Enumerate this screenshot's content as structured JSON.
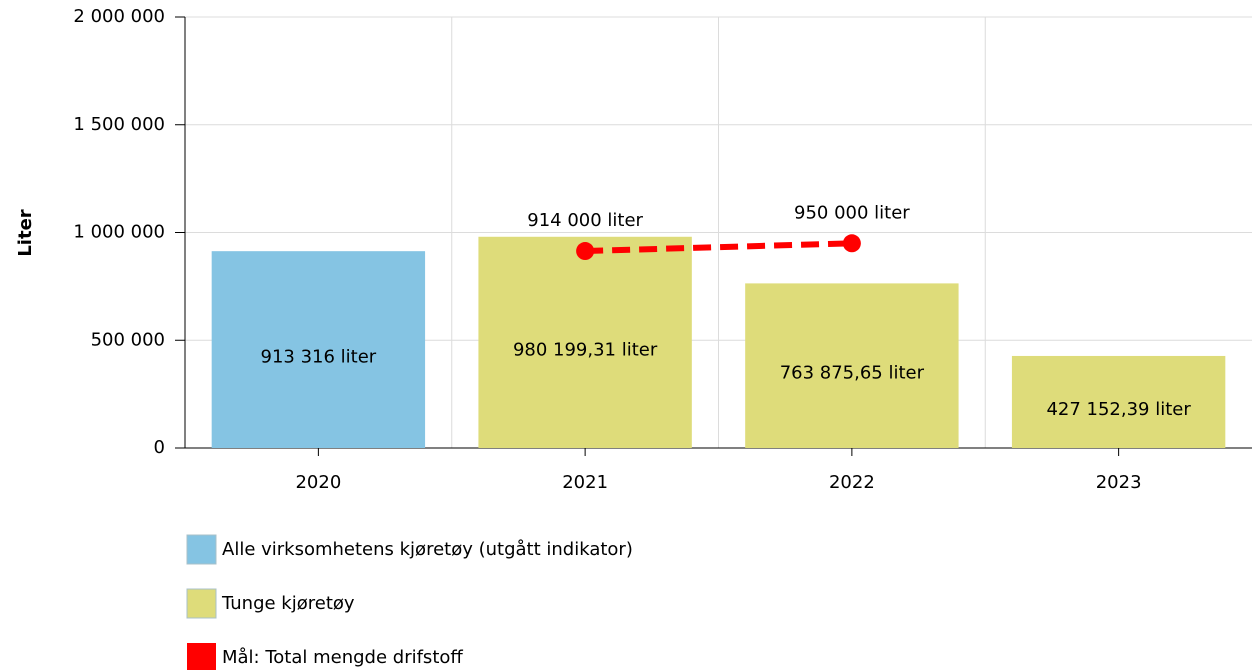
{
  "chart_data": {
    "type": "bar",
    "ylabel": "Liter",
    "categories": [
      "2020",
      "2021",
      "2022",
      "2023"
    ],
    "series": [
      {
        "name": "Alle virksomhetens kjøretøy (utgått indikator)",
        "type": "bar",
        "color": "#85c4e3",
        "values": [
          913316,
          null,
          null,
          null
        ],
        "value_labels": [
          "913 316 liter",
          null,
          null,
          null
        ]
      },
      {
        "name": "Tunge kjøretøy",
        "type": "bar",
        "color": "#dedc7a",
        "values": [
          null,
          980199.31,
          763875.65,
          427152.39
        ],
        "value_labels": [
          null,
          "980 199,31 liter",
          "763 875,65 liter",
          "427 152,39 liter"
        ]
      },
      {
        "name": "Mål: Total mengde drifstoff",
        "type": "line",
        "color": "#ff0000",
        "values": [
          null,
          914000,
          950000,
          null
        ],
        "value_labels": [
          null,
          "914 000 liter",
          "950 000 liter",
          null
        ]
      }
    ],
    "ylim": [
      0,
      2000000
    ],
    "yticks": [
      0,
      {
        "value": 500000,
        "label": "500 000"
      },
      {
        "value": 1000000,
        "label": "1 000 000"
      },
      {
        "value": 1500000,
        "label": "1 500 000"
      },
      {
        "value": 2000000,
        "label": "2 000 000"
      }
    ],
    "grid": true
  }
}
